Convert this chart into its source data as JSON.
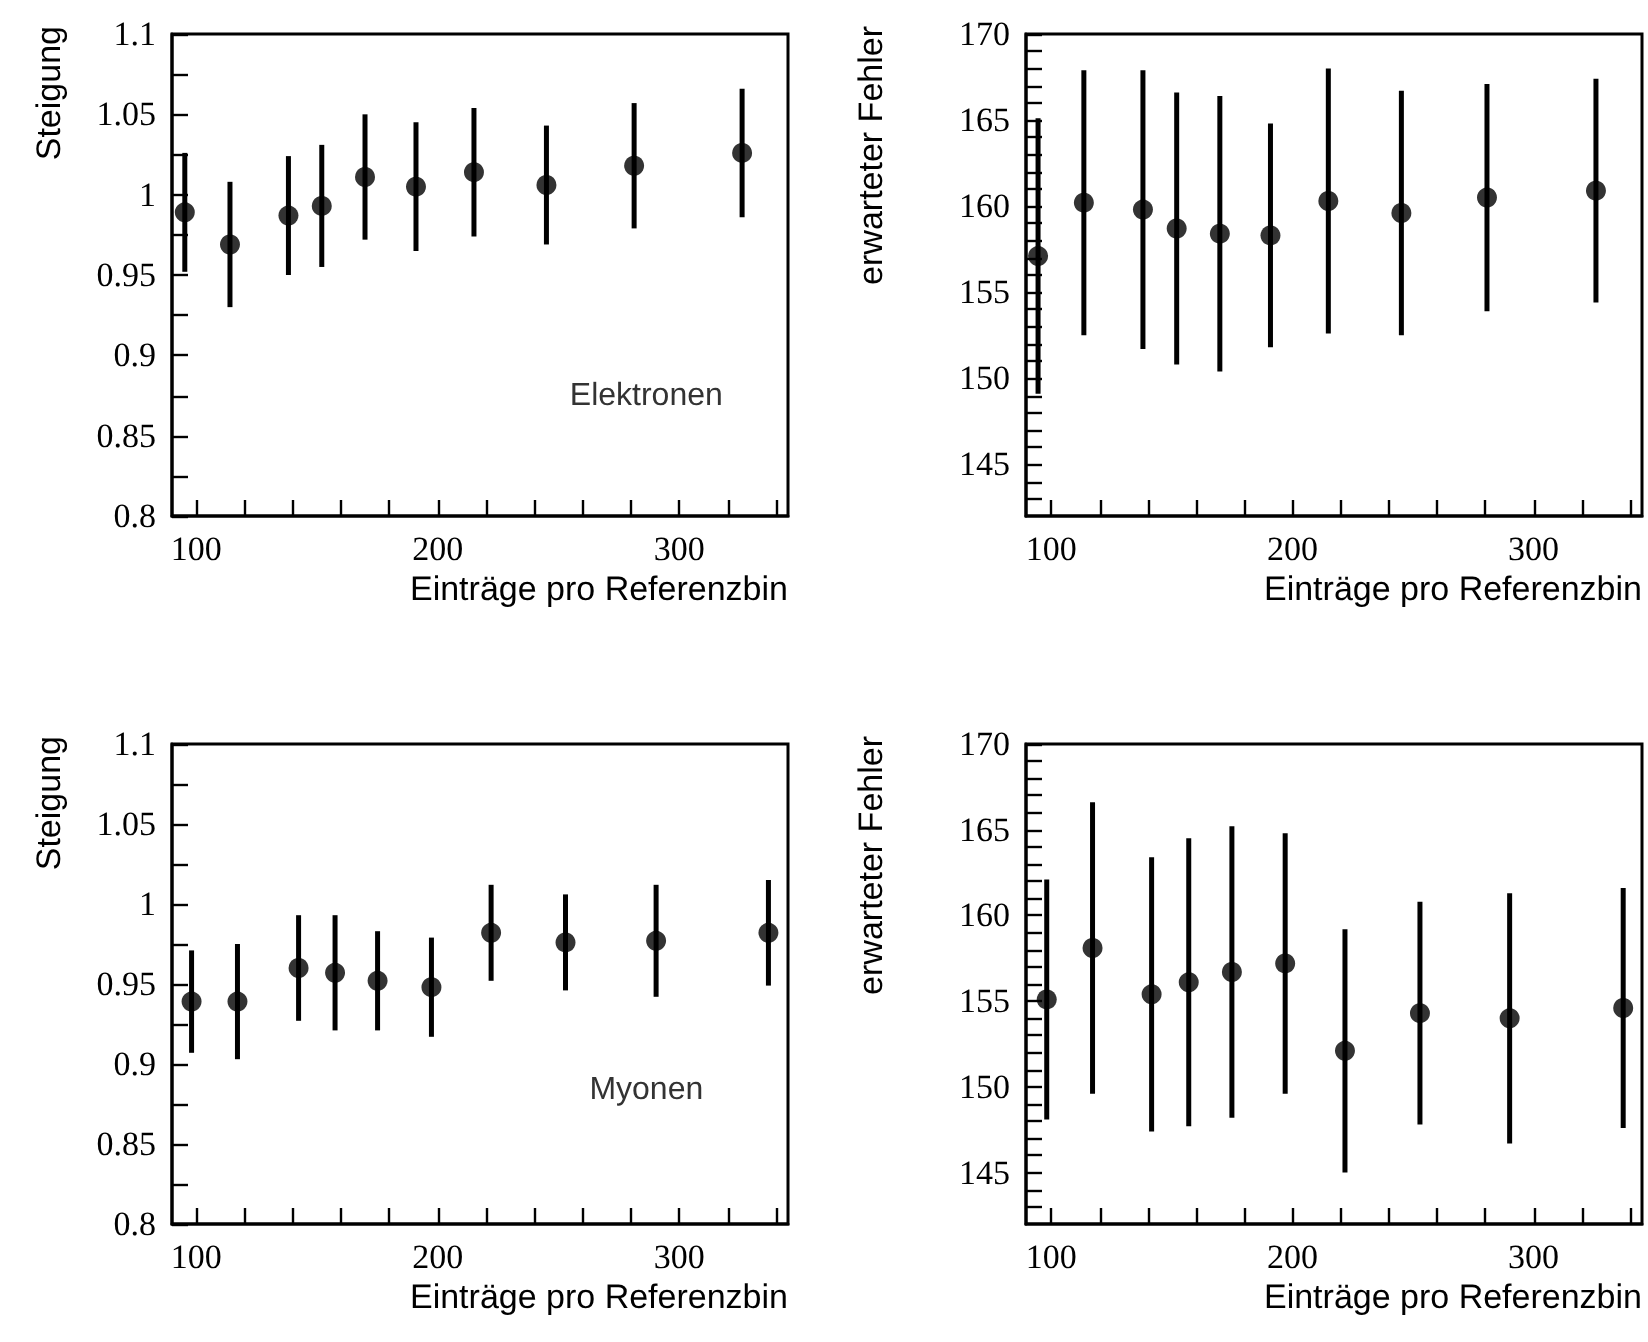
{
  "chart_data": [
    {
      "type": "scatter",
      "xlabel": "Einträge pro Referenzbin",
      "ylabel": "Steigung",
      "annotations": [
        "Elektronen"
      ],
      "marker": "circle",
      "x": [
        95.3,
        114,
        138.2,
        152,
        169.9,
        191,
        215,
        245,
        281.3,
        326
      ],
      "series": [
        {
          "color": "#000000",
          "values": [
            0.989,
            0.969,
            0.987,
            0.993,
            1.011,
            1.005,
            1.014,
            1.006,
            1.018,
            1.026
          ],
          "errors": [
            0.037,
            0.039,
            0.037,
            0.038,
            0.039,
            0.04,
            0.04,
            0.037,
            0.039,
            0.04
          ]
        }
      ],
      "xlim": [
        90,
        345
      ],
      "xticks": [
        100,
        {
          "value": 120,
          "label": null
        },
        {
          "value": 140,
          "label": null
        },
        {
          "value": 160,
          "label": null
        },
        {
          "value": 180,
          "label": null
        },
        200,
        {
          "value": 220,
          "label": null
        },
        {
          "value": 240,
          "label": null
        },
        {
          "value": 260,
          "label": null
        },
        {
          "value": 280,
          "label": null
        },
        300,
        {
          "value": 320,
          "label": null
        },
        {
          "value": 340,
          "label": null
        }
      ],
      "ylim": [
        0.8,
        1.1
      ],
      "yticks": [
        0.8,
        {
          "value": 0.825,
          "label": null
        },
        0.85,
        {
          "value": 0.875,
          "label": null
        },
        0.9,
        {
          "value": 0.925,
          "label": null
        },
        0.95,
        {
          "value": 0.975,
          "label": null
        },
        1,
        {
          "value": 1.025,
          "label": null
        },
        1.05,
        {
          "value": 1.075,
          "label": null
        },
        1.1
      ]
    },
    {
      "type": "scatter",
      "xlabel": "Einträge pro Referenzbin",
      "ylabel": "erwarteter Fehler",
      "marker": "circle",
      "x": [
        94.5,
        113.5,
        138,
        152,
        169.9,
        190.9,
        214.9,
        245.2,
        280.7,
        325.9
      ],
      "series": [
        {
          "color": "#000000",
          "values": [
            157.1,
            160.2,
            159.8,
            158.7,
            158.4,
            158.3,
            160.3,
            159.6,
            160.5,
            160.9
          ],
          "errors": [
            8,
            7.7,
            8.1,
            7.9,
            8,
            6.5,
            7.7,
            7.1,
            6.6,
            6.5
          ]
        }
      ],
      "xlim": [
        89.5,
        345
      ],
      "xticks": [
        100,
        {
          "value": 120,
          "label": null
        },
        {
          "value": 140,
          "label": null
        },
        {
          "value": 160,
          "label": null
        },
        {
          "value": 180,
          "label": null
        },
        200,
        {
          "value": 220,
          "label": null
        },
        {
          "value": 240,
          "label": null
        },
        {
          "value": 260,
          "label": null
        },
        {
          "value": 280,
          "label": null
        },
        300,
        {
          "value": 320,
          "label": null
        },
        {
          "value": 340,
          "label": null
        }
      ],
      "ylim": [
        142,
        170
      ],
      "yticks": [
        {
          "value": 143,
          "label": null
        },
        {
          "value": 144,
          "label": null
        },
        145,
        {
          "value": 146,
          "label": null
        },
        {
          "value": 147,
          "label": null
        },
        {
          "value": 148,
          "label": null
        },
        {
          "value": 149,
          "label": null
        },
        150,
        {
          "value": 151,
          "label": null
        },
        {
          "value": 152,
          "label": null
        },
        {
          "value": 153,
          "label": null
        },
        {
          "value": 154,
          "label": null
        },
        155,
        {
          "value": 156,
          "label": null
        },
        {
          "value": 157,
          "label": null
        },
        {
          "value": 158,
          "label": null
        },
        {
          "value": 159,
          "label": null
        },
        160,
        {
          "value": 161,
          "label": null
        },
        {
          "value": 162,
          "label": null
        },
        {
          "value": 163,
          "label": null
        },
        {
          "value": 164,
          "label": null
        },
        165,
        {
          "value": 166,
          "label": null
        },
        {
          "value": 167,
          "label": null
        },
        {
          "value": 168,
          "label": null
        },
        {
          "value": 169,
          "label": null
        },
        170
      ]
    },
    {
      "type": "scatter",
      "xlabel": "Einträge pro Referenzbin",
      "ylabel": "Steigung",
      "annotations": [
        "Myonen"
      ],
      "marker": "circle",
      "x": [
        98.1,
        117.1,
        142.4,
        157.5,
        175.1,
        197.4,
        222.1,
        252.9,
        290.4,
        336.9
      ],
      "series": [
        {
          "color": "#000000",
          "values": [
            0.939,
            0.939,
            0.96,
            0.957,
            0.952,
            0.948,
            0.982,
            0.976,
            0.977,
            0.982
          ],
          "errors": [
            0.032,
            0.036,
            0.033,
            0.036,
            0.031,
            0.031,
            0.03,
            0.03,
            0.035,
            0.033
          ]
        }
      ],
      "xlim": [
        90,
        345
      ],
      "xticks": [
        100,
        {
          "value": 120,
          "label": null
        },
        {
          "value": 140,
          "label": null
        },
        {
          "value": 160,
          "label": null
        },
        {
          "value": 180,
          "label": null
        },
        200,
        {
          "value": 220,
          "label": null
        },
        {
          "value": 240,
          "label": null
        },
        {
          "value": 260,
          "label": null
        },
        {
          "value": 280,
          "label": null
        },
        300,
        {
          "value": 320,
          "label": null
        },
        {
          "value": 340,
          "label": null
        }
      ],
      "ylim": [
        0.8,
        1.1
      ],
      "yticks": [
        0.8,
        {
          "value": 0.825,
          "label": null
        },
        0.85,
        {
          "value": 0.875,
          "label": null
        },
        0.9,
        {
          "value": 0.925,
          "label": null
        },
        0.95,
        {
          "value": 0.975,
          "label": null
        },
        1,
        {
          "value": 1.025,
          "label": null
        },
        1.05,
        {
          "value": 1.075,
          "label": null
        },
        1.1
      ]
    },
    {
      "type": "scatter",
      "xlabel": "Einträge pro Referenzbin",
      "ylabel": "erwarteter Fehler",
      "marker": "circle",
      "x": [
        98.1,
        117.1,
        141.6,
        157,
        174.9,
        197,
        221.8,
        252.9,
        290.1,
        337.2
      ],
      "series": [
        {
          "color": "#000000",
          "values": [
            155.1,
            158.1,
            155.4,
            156.1,
            156.7,
            157.2,
            152.1,
            154.3,
            154,
            154.6
          ],
          "errors": [
            7,
            8.5,
            8,
            8.4,
            8.5,
            7.6,
            7.1,
            6.5,
            7.3,
            7
          ]
        }
      ],
      "xlim": [
        89.5,
        345
      ],
      "xticks": [
        100,
        {
          "value": 120,
          "label": null
        },
        {
          "value": 140,
          "label": null
        },
        {
          "value": 160,
          "label": null
        },
        {
          "value": 180,
          "label": null
        },
        200,
        {
          "value": 220,
          "label": null
        },
        {
          "value": 240,
          "label": null
        },
        {
          "value": 260,
          "label": null
        },
        {
          "value": 280,
          "label": null
        },
        300,
        {
          "value": 320,
          "label": null
        },
        {
          "value": 340,
          "label": null
        }
      ],
      "ylim": [
        142,
        170
      ],
      "yticks": [
        {
          "value": 143,
          "label": null
        },
        {
          "value": 144,
          "label": null
        },
        145,
        {
          "value": 146,
          "label": null
        },
        {
          "value": 147,
          "label": null
        },
        {
          "value": 148,
          "label": null
        },
        {
          "value": 149,
          "label": null
        },
        150,
        {
          "value": 151,
          "label": null
        },
        {
          "value": 152,
          "label": null
        },
        {
          "value": 153,
          "label": null
        },
        {
          "value": 154,
          "label": null
        },
        155,
        {
          "value": 156,
          "label": null
        },
        {
          "value": 157,
          "label": null
        },
        {
          "value": 158,
          "label": null
        },
        {
          "value": 159,
          "label": null
        },
        160,
        {
          "value": 161,
          "label": null
        },
        {
          "value": 162,
          "label": null
        },
        {
          "value": 163,
          "label": null
        },
        {
          "value": 164,
          "label": null
        },
        165,
        {
          "value": 166,
          "label": null
        },
        {
          "value": 167,
          "label": null
        },
        {
          "value": 168,
          "label": null
        },
        {
          "value": 169,
          "label": null
        },
        170
      ]
    }
  ]
}
